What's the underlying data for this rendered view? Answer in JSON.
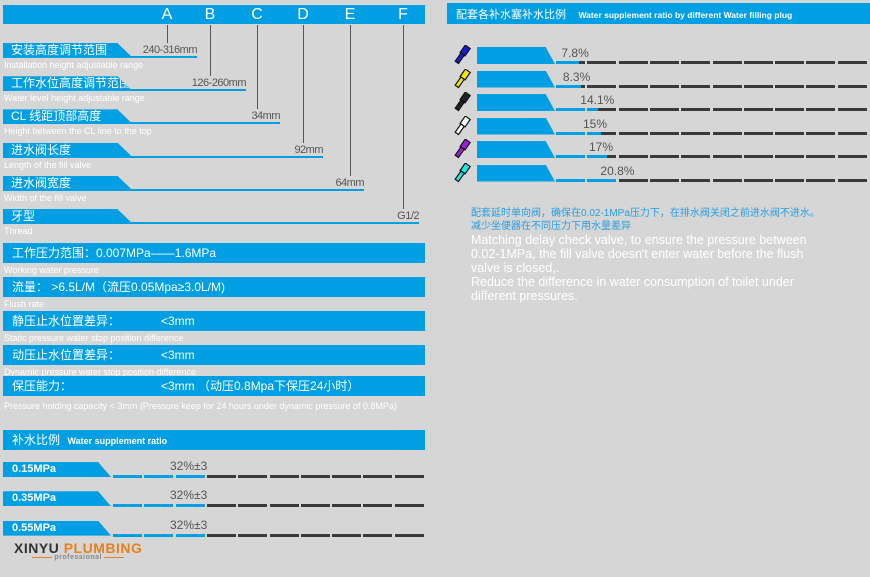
{
  "dimensions": {
    "letters": [
      "A",
      "B",
      "C",
      "D",
      "E",
      "F"
    ],
    "rows": [
      {
        "cn": "安装高度调节范围",
        "en": "Installation height adjustable range",
        "value": "240-316mm"
      },
      {
        "cn": "工作水位高度调节范围",
        "en": "Water level height adjustable range",
        "value": "126-260mm"
      },
      {
        "cn": "CL 线距顶部高度",
        "en": "Height between the CL line to the top",
        "value": "34mm"
      },
      {
        "cn": "进水阀长度",
        "en": "Length of the fill valve",
        "value": "92mm"
      },
      {
        "cn": "进水阀宽度",
        "en": "Width of the fill valve",
        "value": "64mm"
      },
      {
        "cn": "牙型",
        "en": "Thread",
        "value": "G1/2"
      }
    ]
  },
  "specs": [
    {
      "label": "工作压力范围：0.007MPa——1.6MPa",
      "value": "",
      "en": "Working water pressure"
    },
    {
      "label": "流量：  >6.5L/M（流压0.05Mpa≥3.0L/M)",
      "value": "",
      "en": "Flush rate"
    },
    {
      "label": "静压止水位置差异：",
      "value": "<3mm",
      "en": "Static pressure water stop position difference"
    },
    {
      "label": "动压止水位置差异：",
      "value": "<3mm",
      "en": "Dynamic pressure water stop position difference"
    },
    {
      "label": "保压能力：",
      "value": "<3mm  （动压0.8Mpa下保压24小时）",
      "en": "Pressure holding capacity <  3mm (Pressure keep for 24 hours under dynamic pressure of 0.8MPa)"
    }
  ],
  "supplement": {
    "title_cn": "补水比例",
    "title_en": "Water supplement ratio",
    "rows": [
      {
        "pressure": "0.15MPa",
        "value": "32%±3",
        "filled_segments": 3
      },
      {
        "pressure": "0.35MPa",
        "value": "32%±3",
        "filled_segments": 3
      },
      {
        "pressure": "0.55MPa",
        "value": "32%±3",
        "filled_segments": 3
      }
    ]
  },
  "plugs": {
    "title_cn": "配套各补水塞补水比例",
    "title_en": "Water supplement ratio by different Water filling plug",
    "rows": [
      {
        "color": "#1a1adb",
        "value": "7.8%",
        "percent": 7.8
      },
      {
        "color": "#f2e600",
        "value": "8.3%",
        "percent": 8.3
      },
      {
        "color": "#222222",
        "value": "14.1%",
        "percent": 14.1
      },
      {
        "color": "#ffffff",
        "value": "15%",
        "percent": 15
      },
      {
        "color": "#9b1ee0",
        "value": "17%",
        "percent": 17
      },
      {
        "color": "#1ee8e8",
        "value": "20.8%",
        "percent": 20.8
      }
    ],
    "desc_cn": [
      "配套延时单向阀，确保在0.02-1MPa压力下，在排水阀关闭之前进水阀不进水。",
      "减少坐便器在不同压力下用水量差异"
    ],
    "desc_en": [
      "Matching delay check valve, to ensure the pressure between",
      "0.02-1MPa,  the fill valve doesn't enter water before the flush",
      "valve is closed,.",
      "Reduce the difference in water consumption of toilet under",
      "different pressures."
    ]
  },
  "logo": {
    "brand1": "XINYU",
    "brand2": "PLUMBING",
    "tagline": "professional"
  },
  "colors": {
    "accent": "#009fe3",
    "background": "#d5d6d5"
  }
}
